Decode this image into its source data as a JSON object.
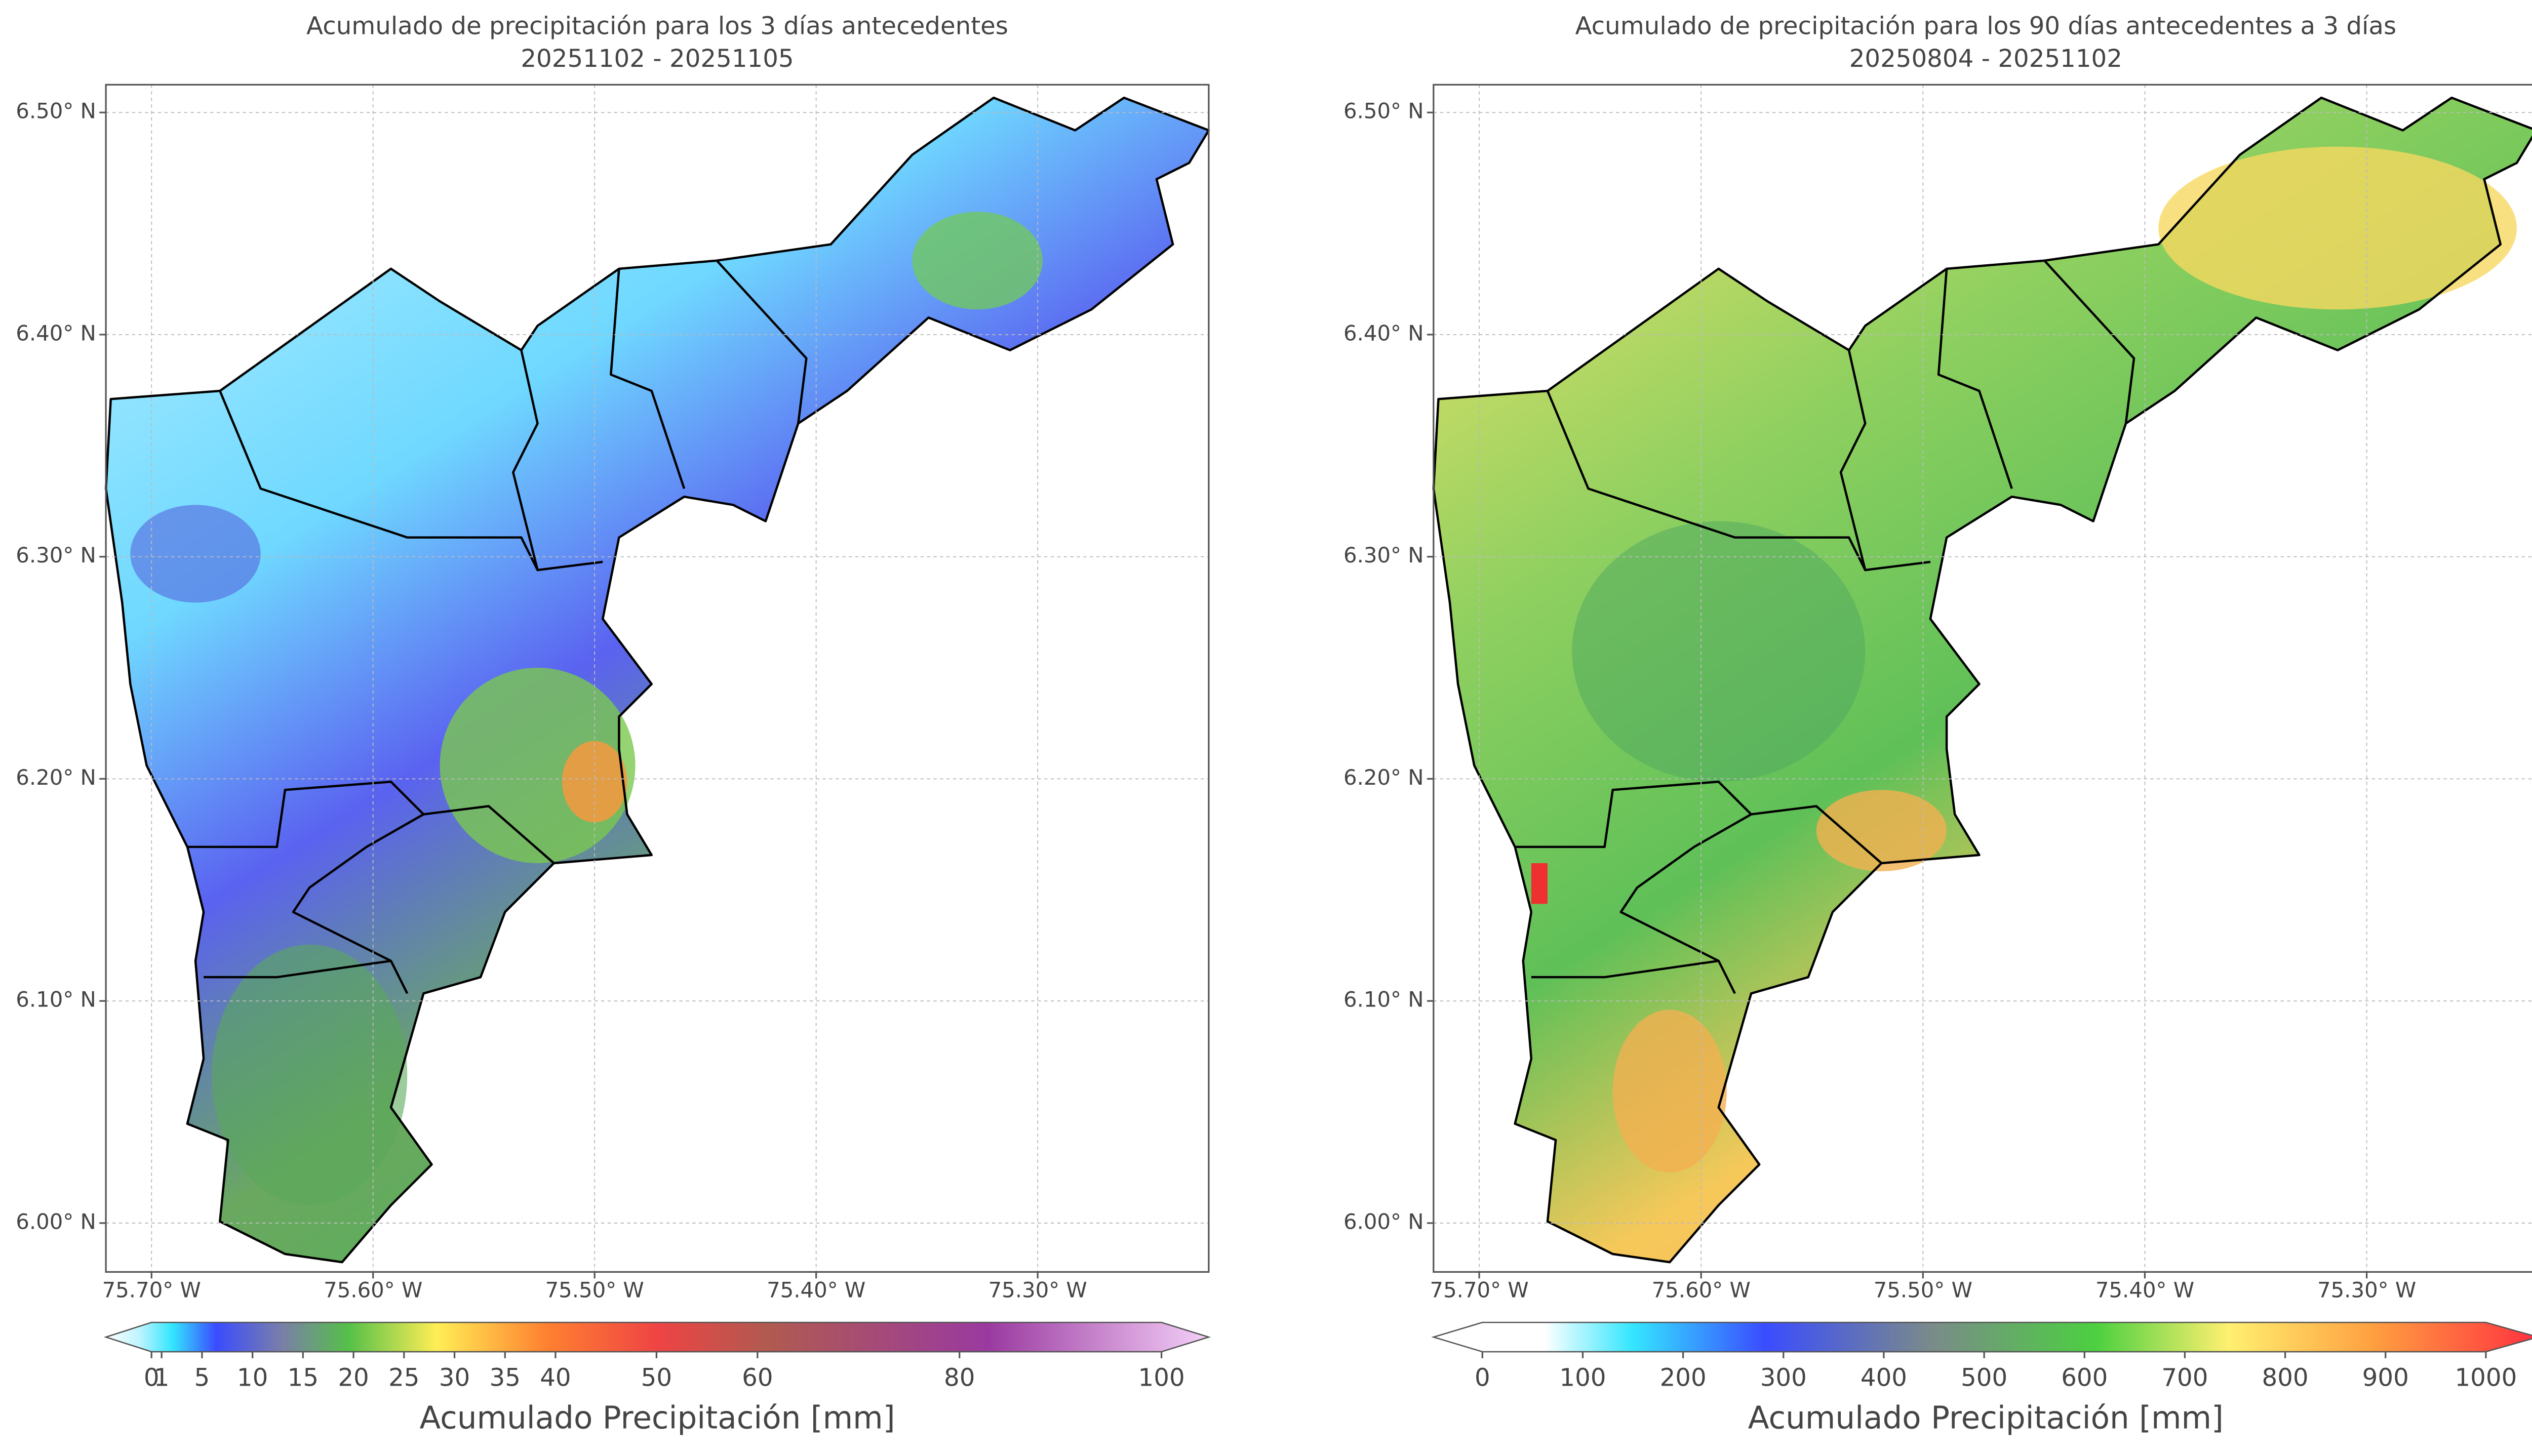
{
  "panels": [
    {
      "title": "Acumulado de precipitación para los 3 días antecedentes",
      "subtitle": "20251102 - 20251105",
      "xlim": [
        -75.7206,
        -75.2228
      ],
      "ylim": [
        5.978,
        6.5125
      ],
      "xticks": [
        {
          "value": -75.7,
          "label": "75.70° W"
        },
        {
          "value": -75.6,
          "label": "75.60° W"
        },
        {
          "value": -75.5,
          "label": "75.50° W"
        },
        {
          "value": -75.4,
          "label": "75.40° W"
        },
        {
          "value": -75.3,
          "label": "75.30° W"
        }
      ],
      "yticks": [
        {
          "value": 6.0,
          "label": "6.00° N"
        },
        {
          "value": 6.1,
          "label": "6.10° N"
        },
        {
          "value": 6.2,
          "label": "6.20° N"
        },
        {
          "value": 6.3,
          "label": "6.30° N"
        },
        {
          "value": 6.4,
          "label": "6.40° N"
        },
        {
          "value": 6.5,
          "label": "6.50° N"
        }
      ],
      "colorbar": {
        "label": "Acumulado Precipitación [mm]",
        "lim": [
          0,
          100
        ],
        "ticks": [
          0,
          1,
          5,
          10,
          15,
          20,
          25,
          30,
          35,
          40,
          50,
          60,
          80,
          100
        ]
      }
    },
    {
      "title": "Acumulado de precipitación para los 90 días antecedentes a 3 días",
      "subtitle": "20250804 - 20251102",
      "xlim": [
        -75.7206,
        -75.2228
      ],
      "ylim": [
        5.978,
        6.5125
      ],
      "xticks": [
        {
          "value": -75.7,
          "label": "75.70° W"
        },
        {
          "value": -75.6,
          "label": "75.60° W"
        },
        {
          "value": -75.5,
          "label": "75.50° W"
        },
        {
          "value": -75.4,
          "label": "75.40° W"
        },
        {
          "value": -75.3,
          "label": "75.30° W"
        }
      ],
      "yticks": [
        {
          "value": 6.0,
          "label": "6.00° N"
        },
        {
          "value": 6.1,
          "label": "6.10° N"
        },
        {
          "value": 6.2,
          "label": "6.20° N"
        },
        {
          "value": 6.3,
          "label": "6.30° N"
        },
        {
          "value": 6.4,
          "label": "6.40° N"
        },
        {
          "value": 6.5,
          "label": "6.50° N"
        }
      ],
      "colorbar": {
        "label": "Acumulado Precipitación [mm]",
        "lim": [
          0,
          1000
        ],
        "ticks": [
          0,
          100,
          200,
          300,
          400,
          500,
          600,
          700,
          800,
          900,
          1000
        ]
      }
    }
  ]
}
